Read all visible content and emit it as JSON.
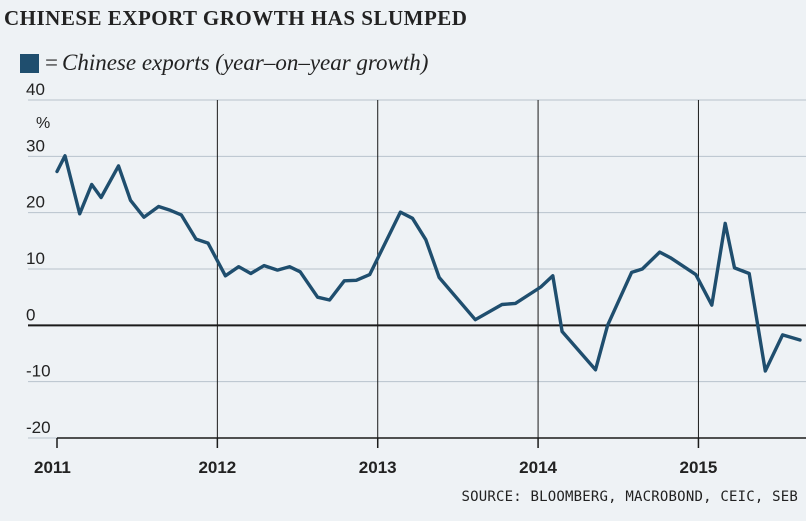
{
  "chart_data": {
    "type": "line",
    "title": "CHINESE EXPORT GROWTH HAS SLUMPED",
    "legend": [
      {
        "symbol": "■",
        "eq": "=",
        "label": "Chinese exports (year–on–year growth)"
      }
    ],
    "ylabel": "%",
    "ylim": [
      -20,
      40
    ],
    "yticks": [
      "40",
      "30",
      "20",
      "10",
      "0",
      "-10",
      "-20"
    ],
    "ytick_values": [
      40,
      30,
      20,
      10,
      0,
      -10,
      -20
    ],
    "xlim": [
      0,
      55.6
    ],
    "xticks": [
      {
        "label": "2011",
        "pos": 0
      },
      {
        "label": "2012",
        "pos": 12
      },
      {
        "label": "2013",
        "pos": 24
      },
      {
        "label": "2014",
        "pos": 36
      },
      {
        "label": "2015",
        "pos": 48
      }
    ],
    "year_gridlines": [
      12,
      24,
      36,
      48
    ],
    "series": [
      {
        "name": "Chinese exports (year–on–year growth)",
        "color": "#1f4e6e",
        "points": [
          [
            0,
            27.3
          ],
          [
            0.6,
            30.1
          ],
          [
            1.7,
            19.8
          ],
          [
            2.6,
            25.0
          ],
          [
            3.3,
            22.7
          ],
          [
            4.6,
            28.3
          ],
          [
            5.5,
            22.2
          ],
          [
            6.5,
            19.2
          ],
          [
            7.6,
            21.1
          ],
          [
            8.5,
            20.4
          ],
          [
            9.3,
            19.6
          ],
          [
            10.4,
            15.3
          ],
          [
            11.3,
            14.6
          ],
          [
            12.6,
            8.8
          ],
          [
            13.6,
            10.4
          ],
          [
            14.5,
            9.2
          ],
          [
            15.5,
            10.6
          ],
          [
            16.5,
            9.8
          ],
          [
            17.4,
            10.4
          ],
          [
            18.2,
            9.5
          ],
          [
            19.5,
            5.0
          ],
          [
            20.4,
            4.5
          ],
          [
            21.5,
            7.9
          ],
          [
            22.4,
            8.0
          ],
          [
            23.4,
            9.0
          ],
          [
            25.7,
            20.1
          ],
          [
            26.6,
            19.0
          ],
          [
            27.6,
            15.2
          ],
          [
            28.6,
            8.5
          ],
          [
            31.3,
            1.0
          ],
          [
            33.3,
            3.7
          ],
          [
            34.3,
            3.9
          ],
          [
            36.2,
            6.8
          ],
          [
            37.1,
            8.8
          ],
          [
            37.8,
            -1.1
          ],
          [
            40.3,
            -7.9
          ],
          [
            41.2,
            0.0
          ],
          [
            43.0,
            9.4
          ],
          [
            43.8,
            10.0
          ],
          [
            45.1,
            13.0
          ],
          [
            45.9,
            12.0
          ],
          [
            47.8,
            9.0
          ],
          [
            49.0,
            3.6
          ],
          [
            50.0,
            18.1
          ],
          [
            50.7,
            10.2
          ],
          [
            51.8,
            9.2
          ],
          [
            53.0,
            -8.1
          ],
          [
            54.3,
            -1.7
          ],
          [
            55.6,
            -2.6
          ]
        ]
      }
    ],
    "colors": {
      "background": "#eef2f5",
      "grid": "#b8c3cc",
      "line": "#1f4e6e",
      "axis": "#1a1a1a"
    },
    "source": "SOURCE: BLOOMBERG, MACROBOND, CEIC, SEB"
  }
}
